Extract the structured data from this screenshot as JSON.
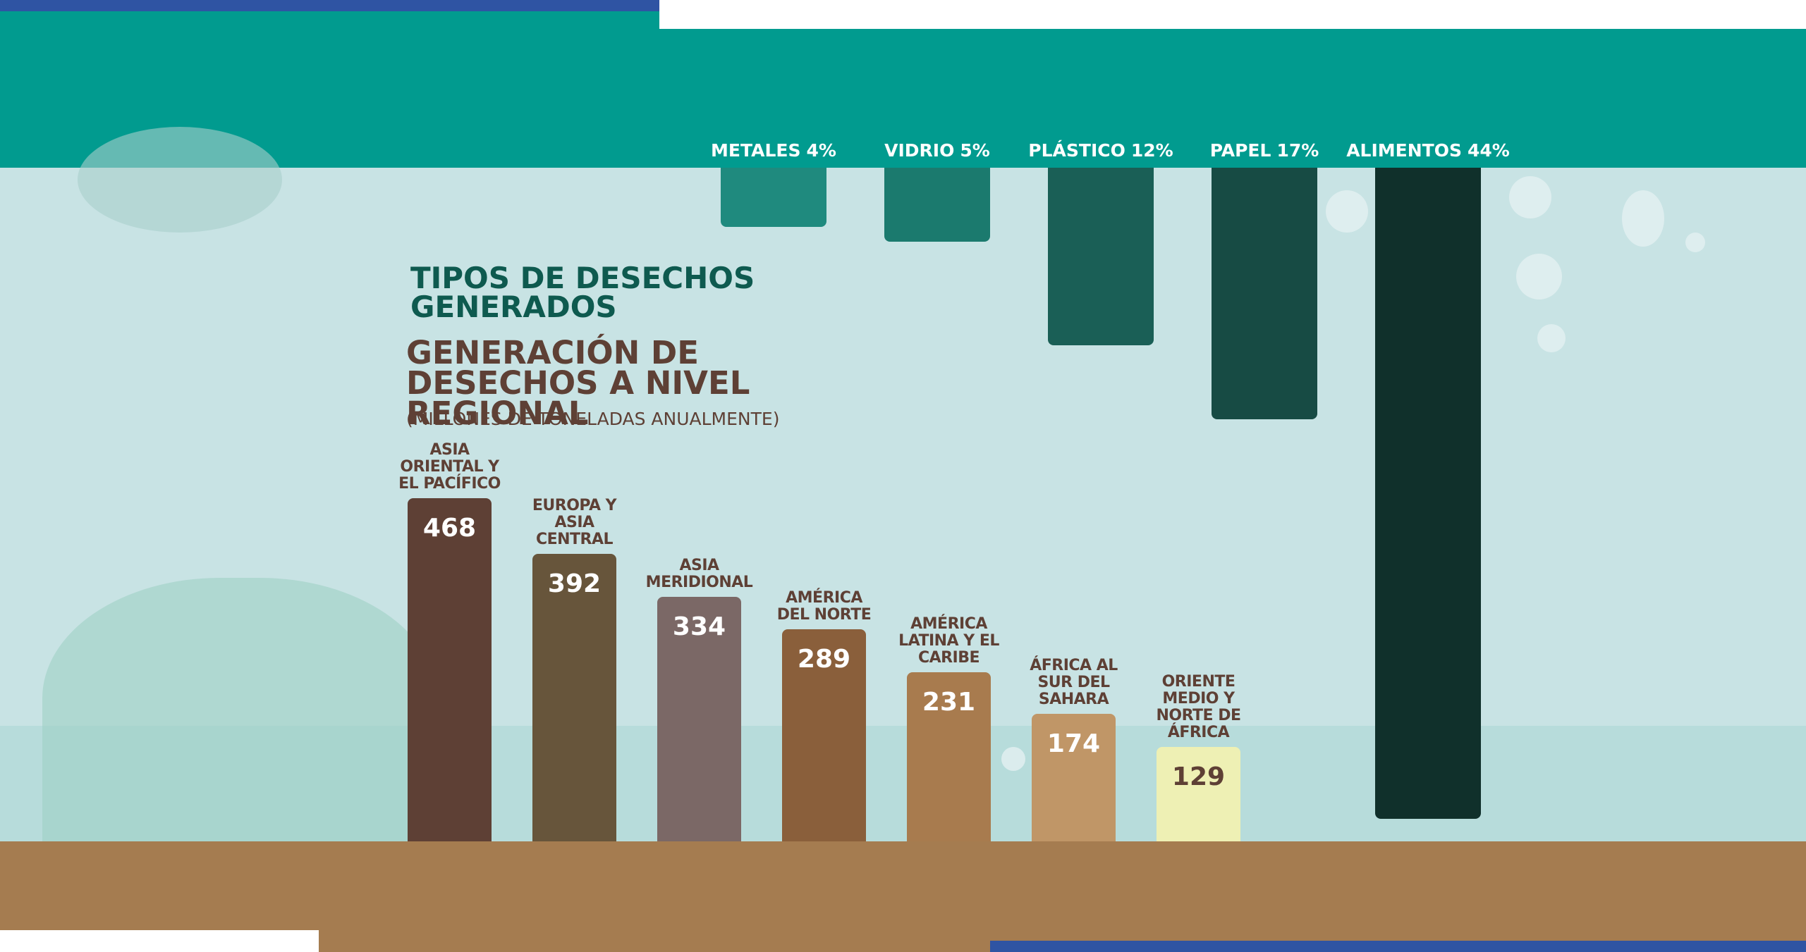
{
  "chart_data": [
    {
      "type": "bar",
      "title": "GENERACIÓN DE DESECHOS A NIVEL REGIONAL",
      "subtitle": "(MILLONES DE TONELADAS ANUALMENTE)",
      "categories": [
        "ASIA ORIENTAL Y EL PACÍFICO",
        "EUROPA Y ASIA CENTRAL",
        "ASIA MERIDIONAL",
        "AMÉRICA DEL NORTE",
        "AMÉRICA LATINA Y EL CARIBE",
        "ÁFRICA AL SUR DEL SAHARA",
        "ORIENTE MEDIO Y NORTE DE ÁFRICA"
      ],
      "values": [
        468,
        392,
        334,
        289,
        231,
        174,
        129
      ],
      "colors": [
        "#5e4035",
        "#67553b",
        "#7b6866",
        "#8a5f3b",
        "#a87b4e",
        "#c09667",
        "#eef0b4"
      ]
    },
    {
      "type": "hanging-bar",
      "title": "TIPOS DE DESECHOS GENERADOS",
      "categories": [
        "METALES",
        "VIDRIO",
        "PLÁSTICO",
        "PAPEL",
        "ALIMENTOS"
      ],
      "values": [
        4,
        5,
        12,
        17,
        44
      ],
      "value_labels": [
        "4%",
        "5%",
        "12%",
        "17%",
        "44%"
      ],
      "colors": [
        "#1f8a7e",
        "#1b7a6e",
        "#1a5f56",
        "#174b44",
        "#10302b"
      ]
    }
  ]
}
